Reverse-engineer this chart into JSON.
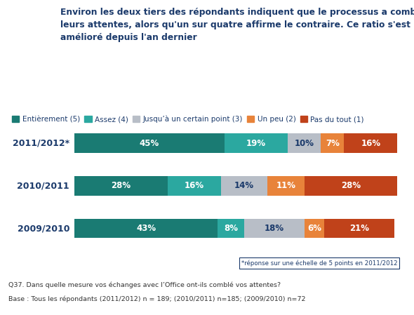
{
  "title_line1": "Environ les deux tiers des répondants indiquent que le processus a comblé",
  "title_line2": "leurs attentes, alors qu'un sur quatre affirme le contraire. Ce ratio s'est",
  "title_line3": "amélioré depuis l'an dernier",
  "title_color": "#1B3A6B",
  "categories": [
    "2011/2012*",
    "2010/2011",
    "2009/2010"
  ],
  "series": [
    {
      "label": "Entièrement (5)",
      "color": "#1A7B73",
      "values": [
        45,
        28,
        43
      ]
    },
    {
      "label": "Assez (4)",
      "color": "#2BA8A0",
      "values": [
        19,
        16,
        8
      ]
    },
    {
      "label": "Jusqu’à un certain point (3)",
      "color": "#B8BEC7",
      "values": [
        10,
        14,
        18
      ]
    },
    {
      "label": "Un peu (2)",
      "color": "#E8833A",
      "values": [
        7,
        11,
        6
      ]
    },
    {
      "label": "Pas du tout (1)",
      "color": "#C0421A",
      "values": [
        16,
        28,
        21
      ]
    }
  ],
  "footnote": "*réponse sur une échelle de 5 points en 2011/2012",
  "question": "Q37. Dans quelle mesure vos échanges avec l’Office ont-ils comblé vos attentes?",
  "base": "Base : Tous les répondants (2011/2012) n = 189; (2010/2011) n=185; (2009/2010) n=72",
  "background_color": "#FFFFFF",
  "bar_height": 0.45,
  "label_fontsize": 8.5,
  "legend_fontsize": 7.5,
  "ycat_fontsize": 9,
  "ipsos_bg": "#1B3A6B",
  "ipsos_fg": "#FFFFFF"
}
